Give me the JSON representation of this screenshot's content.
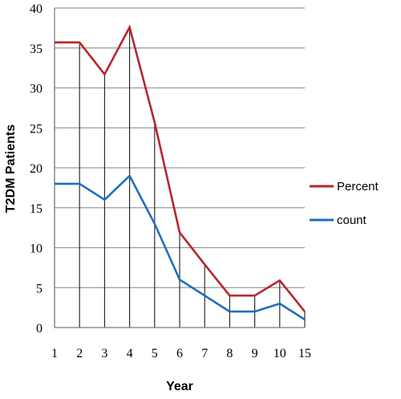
{
  "chart_data": {
    "type": "line",
    "xlabel": "Year",
    "ylabel": "T2DM Patients",
    "categories": [
      "1",
      "2",
      "3",
      "4",
      "5",
      "6",
      "7",
      "8",
      "9",
      "10",
      "15"
    ],
    "ylim": [
      0,
      40
    ],
    "yticks": [
      0,
      5,
      10,
      15,
      20,
      25,
      30,
      35,
      40
    ],
    "grid": true,
    "drop_lines": true,
    "legend_position": "right",
    "series": [
      {
        "name": "Percent",
        "color": "#b8262c",
        "values": [
          35.7,
          35.7,
          31.7,
          37.6,
          25.7,
          11.9,
          7.9,
          4,
          4,
          5.9,
          2
        ]
      },
      {
        "name": "count",
        "color": "#1f6dbf",
        "values": [
          18,
          18,
          16,
          19,
          13,
          6,
          4,
          2,
          2,
          3,
          1
        ]
      }
    ]
  }
}
